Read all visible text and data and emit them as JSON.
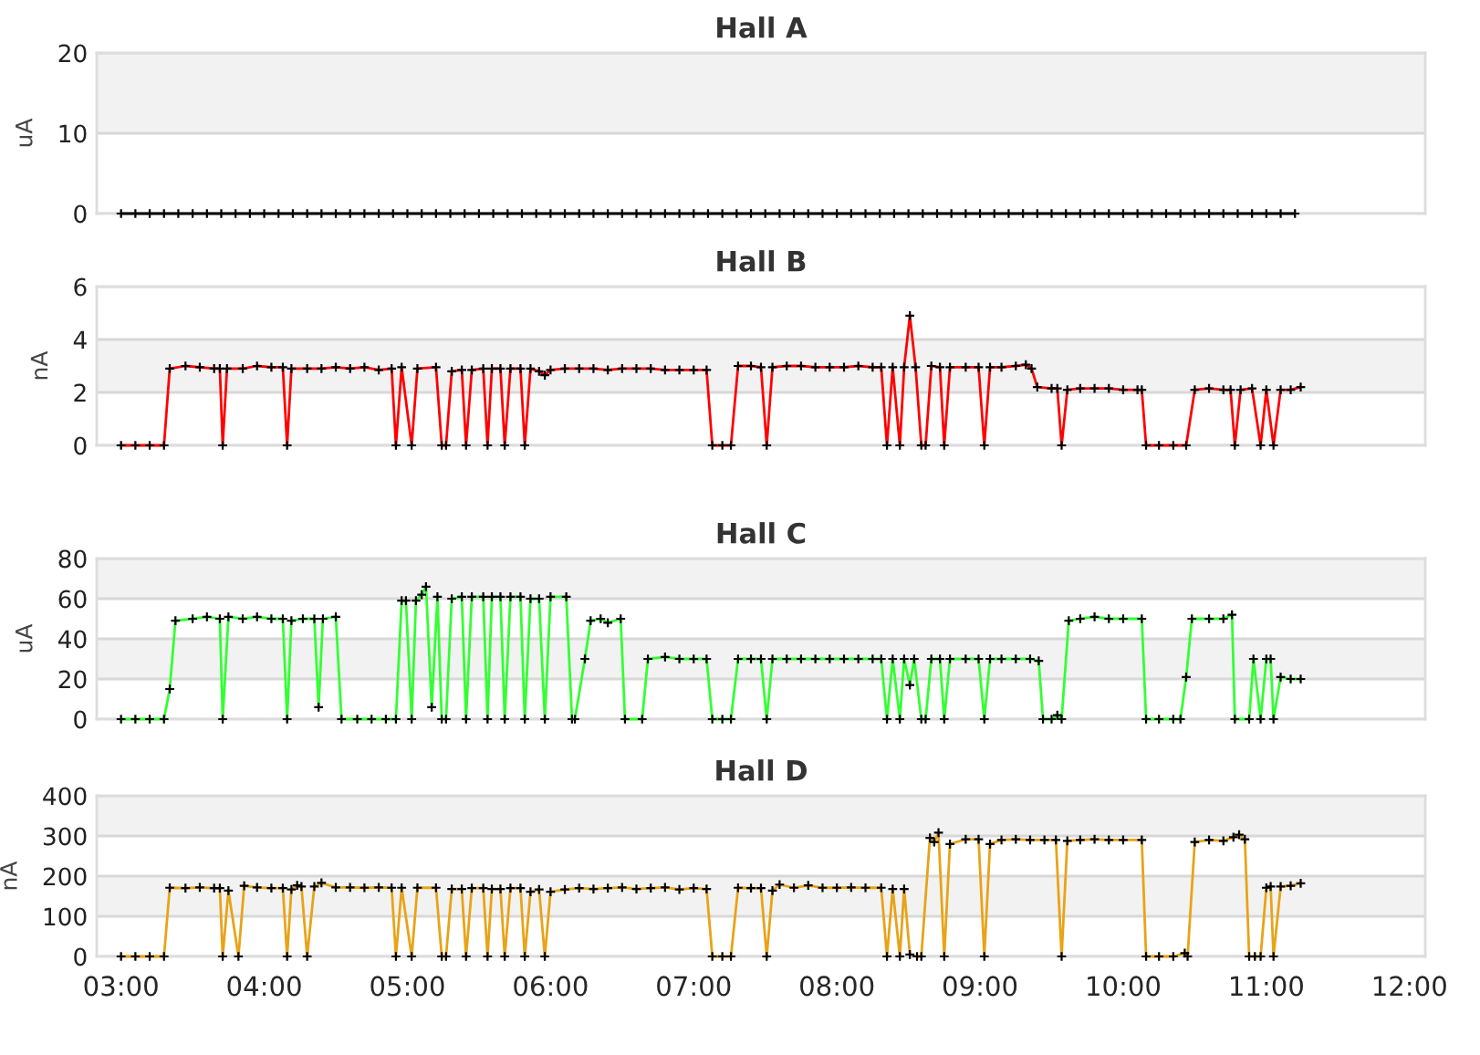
{
  "chart_data": [
    {
      "type": "line",
      "title": "Hall A",
      "ylabel": "uA",
      "xlim": [
        2.83,
        12.11
      ],
      "ylim": [
        0,
        20
      ],
      "yticks": [
        0,
        10,
        20
      ],
      "tick_labels": "y",
      "grid": "y",
      "marker": "cross",
      "line_style": "solid",
      "bands": [
        {
          "axis": "y",
          "from": 10,
          "to": 20,
          "color": "#f2f2f2"
        }
      ],
      "x": [
        3.0,
        3.1,
        3.2,
        3.3,
        3.4,
        3.5,
        3.6,
        3.7,
        3.8,
        3.9,
        4.0,
        4.1,
        4.2,
        4.3,
        4.4,
        4.5,
        4.6,
        4.7,
        4.8,
        4.9,
        5.0,
        5.1,
        5.2,
        5.3,
        5.4,
        5.5,
        5.6,
        5.7,
        5.8,
        5.9,
        6.0,
        6.1,
        6.2,
        6.3,
        6.4,
        6.5,
        6.6,
        6.7,
        6.8,
        6.9,
        7.0,
        7.1,
        7.2,
        7.3,
        7.4,
        7.5,
        7.6,
        7.7,
        7.8,
        7.9,
        8.0,
        8.1,
        8.2,
        8.3,
        8.4,
        8.5,
        8.6,
        8.7,
        8.8,
        8.9,
        9.0,
        9.1,
        9.2,
        9.3,
        9.4,
        9.5,
        9.6,
        9.7,
        9.8,
        9.9,
        10.0,
        10.1,
        10.2,
        10.3,
        10.4,
        10.5,
        10.6,
        10.7,
        10.8,
        10.9,
        11.0,
        11.1,
        11.2
      ],
      "series": [
        {
          "color": "#000000",
          "values": [
            0,
            0,
            0,
            0,
            0,
            0,
            0,
            0,
            0,
            0,
            0,
            0,
            0,
            0,
            0,
            0,
            0,
            0,
            0,
            0,
            0,
            0,
            0,
            0,
            0,
            0,
            0,
            0,
            0,
            0,
            0,
            0,
            0,
            0,
            0,
            0,
            0,
            0,
            0,
            0,
            0,
            0,
            0,
            0,
            0,
            0,
            0,
            0,
            0,
            0,
            0,
            0,
            0,
            0,
            0,
            0,
            0,
            0,
            0,
            0,
            0,
            0,
            0,
            0,
            0,
            0,
            0,
            0,
            0,
            0,
            0,
            0,
            0,
            0,
            0,
            0,
            0,
            0,
            0,
            0,
            0,
            0,
            0
          ]
        }
      ]
    },
    {
      "type": "line",
      "title": "Hall B",
      "ylabel": "nA",
      "xlim": [
        2.83,
        12.11
      ],
      "ylim": [
        0,
        6
      ],
      "yticks": [
        0,
        2,
        4,
        6
      ],
      "tick_labels": "y",
      "grid": "y",
      "marker": "cross",
      "line_style": "solid",
      "bands": [
        {
          "axis": "y",
          "from": 2,
          "to": 4,
          "color": "#f2f2f2"
        }
      ],
      "x": [
        3.0,
        3.1,
        3.2,
        3.3,
        3.34,
        3.45,
        3.55,
        3.65,
        3.69,
        3.71,
        3.74,
        3.85,
        3.95,
        4.05,
        4.13,
        4.16,
        4.19,
        4.3,
        4.4,
        4.5,
        4.6,
        4.7,
        4.8,
        4.89,
        4.92,
        4.96,
        5.03,
        5.07,
        5.2,
        5.24,
        5.27,
        5.31,
        5.38,
        5.41,
        5.45,
        5.53,
        5.56,
        5.59,
        5.65,
        5.68,
        5.72,
        5.79,
        5.82,
        5.86,
        5.92,
        5.96,
        6.0,
        6.1,
        6.2,
        6.3,
        6.4,
        6.5,
        6.6,
        6.7,
        6.8,
        6.9,
        7.0,
        7.09,
        7.13,
        7.2,
        7.26,
        7.31,
        7.4,
        7.47,
        7.51,
        7.55,
        7.65,
        7.75,
        7.85,
        7.95,
        8.05,
        8.15,
        8.25,
        8.31,
        8.35,
        8.39,
        8.44,
        8.47,
        8.51,
        8.55,
        8.59,
        8.62,
        8.66,
        8.72,
        8.75,
        8.79,
        8.9,
        8.99,
        9.03,
        9.07,
        9.15,
        9.25,
        9.32,
        9.36,
        9.4,
        9.5,
        9.54,
        9.57,
        9.61,
        9.7,
        9.8,
        9.9,
        10.0,
        10.1,
        10.13,
        10.16,
        10.25,
        10.35,
        10.44,
        10.5,
        10.6,
        10.7,
        10.75,
        10.78,
        10.82,
        10.9,
        10.96,
        11.0,
        11.05,
        11.1,
        11.17,
        11.24
      ],
      "series": [
        {
          "color": "#ff0000",
          "values": [
            0,
            0,
            0,
            0,
            2.9,
            3.0,
            2.95,
            2.9,
            2.9,
            0,
            2.9,
            2.9,
            3.0,
            2.95,
            2.95,
            0,
            2.9,
            2.9,
            2.9,
            2.95,
            2.9,
            2.95,
            2.85,
            2.9,
            0,
            2.95,
            0,
            2.9,
            2.95,
            0,
            0,
            2.8,
            2.85,
            0,
            2.85,
            2.9,
            0,
            2.9,
            2.9,
            0,
            2.9,
            2.9,
            0,
            2.9,
            2.8,
            2.65,
            2.85,
            2.9,
            2.9,
            2.9,
            2.85,
            2.9,
            2.9,
            2.9,
            2.85,
            2.85,
            2.85,
            2.85,
            0,
            0,
            0,
            3.0,
            3.0,
            2.95,
            0,
            2.95,
            3.0,
            3.0,
            2.95,
            2.95,
            2.95,
            3.0,
            2.95,
            2.95,
            0,
            2.95,
            0,
            2.95,
            4.9,
            2.95,
            0,
            0,
            3.0,
            2.95,
            0,
            2.95,
            2.95,
            2.95,
            0,
            2.95,
            2.95,
            3.0,
            3.05,
            2.9,
            2.2,
            2.15,
            2.15,
            0,
            2.1,
            2.15,
            2.15,
            2.15,
            2.1,
            2.1,
            2.1,
            0,
            0,
            0,
            0,
            2.1,
            2.15,
            2.1,
            2.1,
            0,
            2.1,
            2.15,
            0,
            2.1,
            0,
            2.1,
            2.1,
            2.2
          ]
        }
      ]
    },
    {
      "type": "line",
      "title": "Hall C",
      "ylabel": "uA",
      "xlim": [
        2.83,
        12.11
      ],
      "ylim": [
        0,
        80
      ],
      "yticks": [
        0,
        20,
        40,
        60,
        80
      ],
      "tick_labels": "y",
      "grid": "y",
      "marker": "cross",
      "line_style": "solid",
      "bands": [
        {
          "axis": "y",
          "from": 20,
          "to": 40,
          "color": "#f2f2f2"
        },
        {
          "axis": "y",
          "from": 60,
          "to": 80,
          "color": "#f2f2f2"
        }
      ],
      "x": [
        3.0,
        3.1,
        3.2,
        3.3,
        3.34,
        3.38,
        3.5,
        3.6,
        3.69,
        3.71,
        3.75,
        3.85,
        3.95,
        4.05,
        4.13,
        4.16,
        4.19,
        4.27,
        4.35,
        4.38,
        4.41,
        4.5,
        4.54,
        4.65,
        4.75,
        4.85,
        4.92,
        4.96,
        4.99,
        5.03,
        5.06,
        5.1,
        5.13,
        5.17,
        5.21,
        5.24,
        5.27,
        5.31,
        5.38,
        5.41,
        5.45,
        5.53,
        5.56,
        5.59,
        5.65,
        5.68,
        5.72,
        5.79,
        5.82,
        5.86,
        5.92,
        5.96,
        6.0,
        6.11,
        6.15,
        6.17,
        6.24,
        6.28,
        6.35,
        6.4,
        6.49,
        6.52,
        6.64,
        6.68,
        6.8,
        6.9,
        7.0,
        7.09,
        7.13,
        7.2,
        7.26,
        7.31,
        7.4,
        7.47,
        7.51,
        7.55,
        7.65,
        7.75,
        7.85,
        7.95,
        8.05,
        8.15,
        8.25,
        8.31,
        8.35,
        8.39,
        8.44,
        8.47,
        8.51,
        8.54,
        8.59,
        8.62,
        8.66,
        8.72,
        8.75,
        8.79,
        8.9,
        8.99,
        9.03,
        9.07,
        9.15,
        9.25,
        9.35,
        9.41,
        9.44,
        9.5,
        9.54,
        9.57,
        9.62,
        9.7,
        9.8,
        9.9,
        10.0,
        10.13,
        10.16,
        10.25,
        10.35,
        10.4,
        10.44,
        10.48,
        10.6,
        10.7,
        10.76,
        10.78,
        10.88,
        10.91,
        10.96,
        11.0,
        11.03,
        11.05,
        11.1,
        11.17,
        11.24
      ],
      "series": [
        {
          "color": "#33ff33",
          "values": [
            0,
            0,
            0,
            0,
            15,
            49,
            50,
            51,
            50,
            0,
            51,
            50,
            51,
            50,
            50,
            0,
            49,
            50,
            50,
            6,
            50,
            51,
            0,
            0,
            0,
            0,
            0,
            59,
            59,
            0,
            59,
            62,
            66,
            6,
            61,
            0,
            0,
            60,
            61,
            0,
            61,
            61,
            0,
            61,
            61,
            0,
            61,
            61,
            0,
            60,
            60,
            0,
            61,
            61,
            0,
            0,
            30,
            49,
            50,
            48,
            50,
            0,
            0,
            30,
            31,
            30,
            30,
            30,
            0,
            0,
            0,
            30,
            30,
            30,
            0,
            30,
            30,
            30,
            30,
            30,
            30,
            30,
            30,
            30,
            0,
            30,
            0,
            30,
            17,
            30,
            0,
            0,
            30,
            30,
            0,
            30,
            30,
            30,
            0,
            30,
            30,
            30,
            30,
            29,
            0,
            0,
            2,
            0,
            49,
            50,
            51,
            50,
            50,
            50,
            0,
            0,
            0,
            0,
            21,
            50,
            50,
            50,
            52,
            0,
            0,
            30,
            0,
            30,
            30,
            0,
            21,
            20,
            20
          ]
        }
      ]
    },
    {
      "type": "line",
      "title": "Hall D",
      "ylabel": "nA",
      "xlim": [
        2.83,
        12.11
      ],
      "ylim": [
        0,
        400
      ],
      "yticks": [
        0,
        100,
        200,
        300,
        400
      ],
      "xticks": [
        {
          "value": 3,
          "label": "03:00"
        },
        {
          "value": 4,
          "label": "04:00"
        },
        {
          "value": 5,
          "label": "05:00"
        },
        {
          "value": 6,
          "label": "06:00"
        },
        {
          "value": 7,
          "label": "07:00"
        },
        {
          "value": 8,
          "label": "08:00"
        },
        {
          "value": 9,
          "label": "09:00"
        },
        {
          "value": 10,
          "label": "10:00"
        },
        {
          "value": 11,
          "label": "11:00"
        },
        {
          "value": 12,
          "label": "12:00"
        }
      ],
      "grid": "y",
      "marker": "cross",
      "line_style": "solid",
      "bands": [
        {
          "axis": "y",
          "from": 100,
          "to": 200,
          "color": "#f2f2f2"
        },
        {
          "axis": "y",
          "from": 300,
          "to": 400,
          "color": "#f2f2f2"
        }
      ],
      "x": [
        3.0,
        3.1,
        3.2,
        3.3,
        3.34,
        3.45,
        3.55,
        3.65,
        3.69,
        3.71,
        3.75,
        3.82,
        3.86,
        3.95,
        4.05,
        4.13,
        4.16,
        4.19,
        4.23,
        4.26,
        4.3,
        4.35,
        4.4,
        4.5,
        4.6,
        4.7,
        4.8,
        4.89,
        4.92,
        4.96,
        5.03,
        5.07,
        5.2,
        5.24,
        5.27,
        5.31,
        5.38,
        5.41,
        5.45,
        5.53,
        5.56,
        5.59,
        5.65,
        5.68,
        5.72,
        5.79,
        5.82,
        5.86,
        5.92,
        5.96,
        6.0,
        6.1,
        6.2,
        6.3,
        6.4,
        6.5,
        6.6,
        6.7,
        6.8,
        6.9,
        7.0,
        7.09,
        7.13,
        7.2,
        7.26,
        7.31,
        7.4,
        7.47,
        7.51,
        7.55,
        7.6,
        7.7,
        7.8,
        7.9,
        8.0,
        8.1,
        8.2,
        8.31,
        8.35,
        8.39,
        8.44,
        8.47,
        8.51,
        8.56,
        8.59,
        8.65,
        8.68,
        8.71,
        8.75,
        8.79,
        8.9,
        8.99,
        9.03,
        9.07,
        9.15,
        9.25,
        9.35,
        9.45,
        9.53,
        9.57,
        9.61,
        9.7,
        9.8,
        9.9,
        10.0,
        10.13,
        10.16,
        10.25,
        10.35,
        10.43,
        10.45,
        10.5,
        10.6,
        10.7,
        10.77,
        10.81,
        10.85,
        10.88,
        10.92,
        10.96,
        11.0,
        11.03,
        11.05,
        11.1,
        11.17,
        11.24
      ],
      "series": [
        {
          "color": "#e8a317",
          "values": [
            0,
            0,
            0,
            0,
            171,
            170,
            172,
            170,
            170,
            0,
            164,
            0,
            176,
            172,
            170,
            170,
            0,
            167,
            177,
            174,
            0,
            174,
            183,
            172,
            172,
            171,
            172,
            171,
            0,
            171,
            0,
            171,
            171,
            0,
            0,
            168,
            168,
            0,
            170,
            170,
            0,
            168,
            168,
            0,
            170,
            170,
            0,
            161,
            167,
            0,
            161,
            167,
            170,
            168,
            170,
            172,
            168,
            170,
            172,
            167,
            170,
            168,
            0,
            0,
            0,
            171,
            170,
            170,
            0,
            164,
            179,
            171,
            177,
            171,
            171,
            172,
            171,
            171,
            0,
            168,
            0,
            168,
            5,
            0,
            0,
            295,
            285,
            308,
            0,
            280,
            292,
            292,
            0,
            280,
            290,
            292,
            290,
            290,
            290,
            0,
            288,
            290,
            292,
            290,
            290,
            290,
            0,
            0,
            0,
            8,
            0,
            285,
            290,
            288,
            297,
            303,
            292,
            0,
            0,
            0,
            171,
            174,
            0,
            174,
            176,
            182
          ]
        }
      ]
    }
  ]
}
